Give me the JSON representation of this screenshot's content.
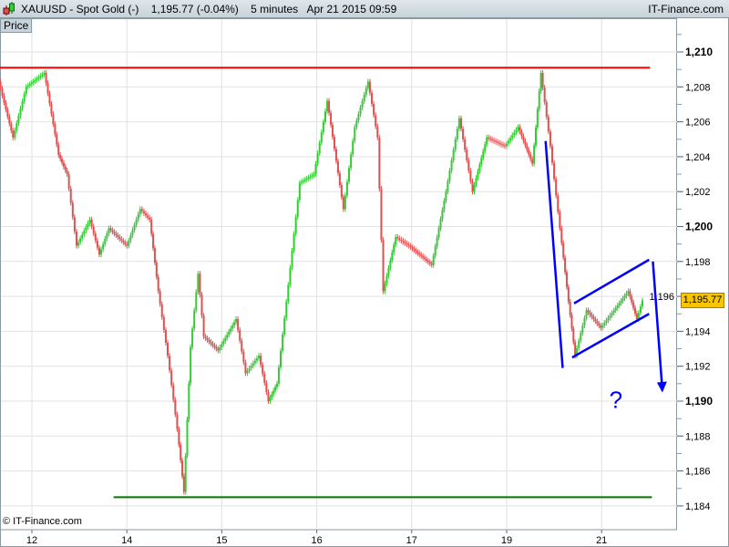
{
  "header": {
    "symbol": "XAUUSD - Spot Gold (-)",
    "quote": "1,195.77 (-0.04%)",
    "interval": "5 minutes",
    "datetime": "Apr 21 2015 09:59",
    "brand": "IT-Finance.com",
    "icon": "candlestick-icon"
  },
  "panel_label": "Price",
  "copyright": "© IT-Finance.com",
  "current_price_label": "1,195.77",
  "colors": {
    "up": "#33cc33",
    "down": "#e05050",
    "support": "#007700",
    "resistance": "#ff0000",
    "annotation": "#0000ff",
    "price_tag": "#f7c600"
  },
  "chart_data": {
    "type": "candlestick",
    "title": "XAUUSD - Spot Gold (-)",
    "x_ticks": [
      "12",
      "14",
      "15",
      "16",
      "17",
      "19",
      "21"
    ],
    "y_ticks": [
      {
        "v": 1184,
        "label": "1,184",
        "bold": false
      },
      {
        "v": 1186,
        "label": "1,186",
        "bold": false
      },
      {
        "v": 1188,
        "label": "1,188",
        "bold": false
      },
      {
        "v": 1190,
        "label": "1,190",
        "bold": true
      },
      {
        "v": 1192,
        "label": "1,192",
        "bold": false
      },
      {
        "v": 1194,
        "label": "1,194",
        "bold": false
      },
      {
        "v": 1196,
        "label": "1,196",
        "bold": false
      },
      {
        "v": 1198,
        "label": "1,198",
        "bold": false
      },
      {
        "v": 1200,
        "label": "1,200",
        "bold": true
      },
      {
        "v": 1202,
        "label": "1,202",
        "bold": false
      },
      {
        "v": 1204,
        "label": "1,204",
        "bold": false
      },
      {
        "v": 1206,
        "label": "1,206",
        "bold": false
      },
      {
        "v": 1208,
        "label": "1,208",
        "bold": false
      },
      {
        "v": 1210,
        "label": "1,210",
        "bold": true
      }
    ],
    "ylim": [
      1183.4,
      1211.9
    ],
    "grid": true,
    "current_price": 1195.77,
    "price_path": [
      [
        -0.34,
        1208.3
      ],
      [
        -0.19,
        1205.1
      ],
      [
        -0.05,
        1208.0
      ],
      [
        0.14,
        1208.8
      ],
      [
        0.29,
        1204.1
      ],
      [
        0.38,
        1203.0
      ],
      [
        0.48,
        1198.9
      ],
      [
        0.62,
        1200.4
      ],
      [
        0.72,
        1198.4
      ],
      [
        0.82,
        1199.9
      ],
      [
        1.01,
        1198.9
      ],
      [
        1.15,
        1201.0
      ],
      [
        1.25,
        1200.4
      ],
      [
        1.34,
        1196.3
      ],
      [
        1.44,
        1192.6
      ],
      [
        1.54,
        1188.4
      ],
      [
        1.61,
        1184.8
      ],
      [
        1.68,
        1193.1
      ],
      [
        1.76,
        1197.3
      ],
      [
        1.82,
        1193.7
      ],
      [
        1.97,
        1192.9
      ],
      [
        2.16,
        1194.7
      ],
      [
        2.26,
        1191.6
      ],
      [
        2.4,
        1192.6
      ],
      [
        2.5,
        1190.0
      ],
      [
        2.59,
        1191.0
      ],
      [
        2.69,
        1195.7
      ],
      [
        2.83,
        1202.5
      ],
      [
        2.98,
        1203.0
      ],
      [
        3.12,
        1207.2
      ],
      [
        3.29,
        1201.0
      ],
      [
        3.41,
        1205.7
      ],
      [
        3.55,
        1208.3
      ],
      [
        3.65,
        1205.1
      ],
      [
        3.71,
        1196.3
      ],
      [
        3.84,
        1199.4
      ],
      [
        3.98,
        1198.9
      ],
      [
        4.22,
        1197.8
      ],
      [
        4.37,
        1202.0
      ],
      [
        4.51,
        1206.2
      ],
      [
        4.65,
        1202.0
      ],
      [
        4.8,
        1205.1
      ],
      [
        4.99,
        1204.6
      ],
      [
        5.13,
        1205.7
      ],
      [
        5.28,
        1203.6
      ],
      [
        5.37,
        1208.8
      ],
      [
        5.47,
        1204.6
      ],
      [
        5.57,
        1199.9
      ],
      [
        5.66,
        1195.7
      ],
      [
        5.73,
        1192.6
      ],
      [
        5.85,
        1195.2
      ],
      [
        6.0,
        1194.2
      ],
      [
        6.14,
        1195.2
      ],
      [
        6.29,
        1196.3
      ],
      [
        6.38,
        1194.7
      ],
      [
        6.44,
        1195.77
      ]
    ],
    "annotations": {
      "resistance": {
        "price": 1209.1,
        "from": -0.34,
        "to": 6.51
      },
      "support": {
        "price": 1184.5,
        "from": 0.86,
        "to": 6.53
      },
      "drop_line": [
        [
          5.41,
          1204.9
        ],
        [
          5.59,
          1191.9
        ]
      ],
      "channel_upper": [
        [
          5.71,
          1195.6
        ],
        [
          6.5,
          1198.1
        ]
      ],
      "channel_lower": [
        [
          5.69,
          1192.5
        ],
        [
          6.5,
          1195.0
        ]
      ],
      "forecast_arrow": [
        [
          6.54,
          1198.0
        ],
        [
          6.64,
          1190.6
        ]
      ],
      "question": {
        "text": "?",
        "t": 6.15,
        "price": 1189.6
      }
    }
  }
}
